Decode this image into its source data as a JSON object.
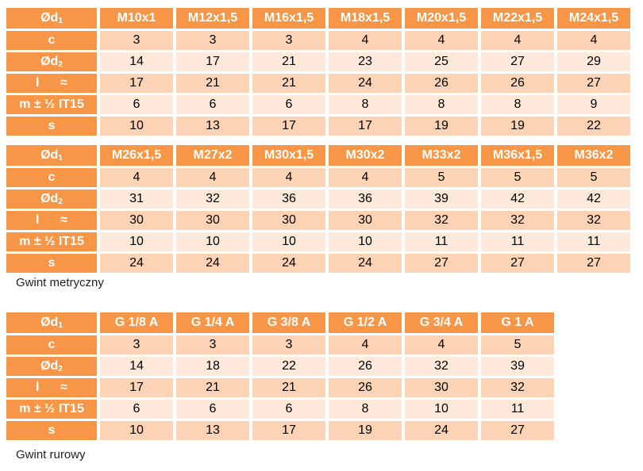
{
  "metric_table_1": {
    "corner": {
      "main": "Ød",
      "sub": "1"
    },
    "headers": [
      "M10x1",
      "M12x1,5",
      "M16x1,5",
      "M18x1,5",
      "M20x1,5",
      "M22x1,5",
      "M24x1,5"
    ],
    "rows": [
      {
        "label": "c",
        "values": [
          "3",
          "3",
          "3",
          "4",
          "4",
          "4",
          "4"
        ]
      },
      {
        "label": "Ød",
        "label_sub": "2",
        "values": [
          "14",
          "17",
          "21",
          "23",
          "25",
          "27",
          "29"
        ]
      },
      {
        "label": "l      ≈",
        "values": [
          "17",
          "21",
          "21",
          "24",
          "26",
          "26",
          "27"
        ]
      },
      {
        "label": "m ± ½ IT15",
        "values": [
          "6",
          "6",
          "6",
          "8",
          "8",
          "8",
          "9"
        ]
      },
      {
        "label": "s",
        "values": [
          "10",
          "13",
          "17",
          "17",
          "19",
          "19",
          "22"
        ]
      }
    ]
  },
  "metric_table_2": {
    "corner": {
      "main": "Ød",
      "sub": "1"
    },
    "headers": [
      "M26x1,5",
      "M27x2",
      "M30x1,5",
      "M30x2",
      "M33x2",
      "M36x1,5",
      "M36x2"
    ],
    "rows": [
      {
        "label": "c",
        "values": [
          "4",
          "4",
          "4",
          "4",
          "5",
          "5",
          "5"
        ]
      },
      {
        "label": "Ød",
        "label_sub": "2",
        "values": [
          "31",
          "32",
          "36",
          "36",
          "39",
          "42",
          "42"
        ]
      },
      {
        "label": "l      ≈",
        "values": [
          "30",
          "30",
          "30",
          "30",
          "32",
          "32",
          "32"
        ]
      },
      {
        "label": "m ± ½ IT15",
        "values": [
          "10",
          "10",
          "10",
          "10",
          "11",
          "11",
          "11"
        ]
      },
      {
        "label": "s",
        "values": [
          "24",
          "24",
          "24",
          "24",
          "27",
          "27",
          "27"
        ]
      }
    ]
  },
  "metric_caption": "Gwint metryczny",
  "pipe_table": {
    "corner": {
      "main": "Ød",
      "sub": "1"
    },
    "headers": [
      "G 1/8 A",
      "G 1/4 A",
      "G 3/8 A",
      "G 1/2 A",
      "G 3/4 A",
      "G 1 A"
    ],
    "rows": [
      {
        "label": "c",
        "values": [
          "3",
          "3",
          "3",
          "4",
          "4",
          "5"
        ]
      },
      {
        "label": "Ød",
        "label_sub": "2",
        "values": [
          "14",
          "18",
          "22",
          "26",
          "32",
          "39"
        ]
      },
      {
        "label": "l      ≈",
        "values": [
          "17",
          "21",
          "21",
          "26",
          "30",
          "32"
        ]
      },
      {
        "label": "m ± ½ IT15",
        "values": [
          "6",
          "6",
          "6",
          "8",
          "10",
          "11"
        ]
      },
      {
        "label": "s",
        "values": [
          "10",
          "13",
          "17",
          "19",
          "24",
          "27"
        ]
      }
    ]
  },
  "pipe_caption": "Gwint rurowy",
  "colors": {
    "header": "#f79646",
    "row_odd": "#fcd4b5",
    "row_even": "#fee9da"
  }
}
